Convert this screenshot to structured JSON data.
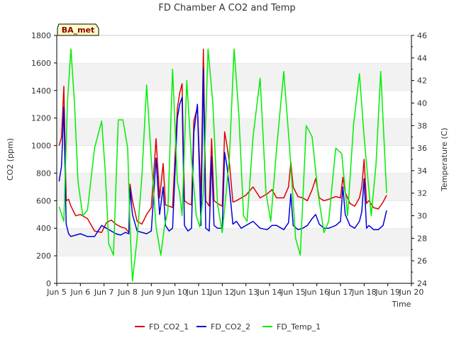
{
  "chart_data": {
    "type": "line",
    "title": "FD Chamber A CO2 and Temp",
    "xlabel": "Time",
    "ylabel_left": "CO2 (ppm)",
    "ylabel_right": "Temperature (C)",
    "site_label": "BA_met",
    "x_tick_labels": [
      "Jun 5",
      "Jun 6",
      "Jun 7",
      "Jun 8",
      "Jun 9",
      "Jun 10",
      "Jun 11",
      "Jun 12",
      "Jun 13",
      "Jun 14",
      "Jun 15",
      "Jun 16",
      "Jun 17",
      "Jun 18",
      "Jun 19",
      "Jun 20"
    ],
    "x_tick_days": [
      5,
      6,
      7,
      8,
      9,
      10,
      11,
      12,
      13,
      14,
      15,
      16,
      17,
      18,
      19,
      20
    ],
    "xlim": [
      5,
      20
    ],
    "ylim_left": [
      0,
      1800
    ],
    "yticks_left": [
      0,
      200,
      400,
      600,
      800,
      1000,
      1200,
      1400,
      1600,
      1800
    ],
    "ylim_right": [
      24,
      46
    ],
    "yticks_right": [
      24,
      26,
      28,
      30,
      32,
      34,
      36,
      38,
      40,
      42,
      44,
      46
    ],
    "grid": "horizontal bands",
    "legend_position": "bottom",
    "series": [
      {
        "name": "FD_CO2_1",
        "axis": "left",
        "color": "#dd0000",
        "x": [
          5.1,
          5.2,
          5.3,
          5.4,
          5.5,
          5.6,
          5.8,
          6.0,
          6.3,
          6.6,
          6.9,
          7.1,
          7.3,
          7.5,
          7.7,
          7.9,
          8.05,
          8.1,
          8.2,
          8.4,
          8.6,
          8.8,
          9.0,
          9.2,
          9.35,
          9.5,
          9.6,
          9.75,
          9.9,
          10.1,
          10.2,
          10.3,
          10.4,
          10.55,
          10.7,
          10.8,
          10.95,
          11.1,
          11.2,
          11.3,
          11.45,
          11.55,
          11.65,
          11.8,
          12.0,
          12.1,
          12.2,
          12.3,
          12.45,
          12.6,
          12.8,
          13.0,
          13.3,
          13.6,
          13.9,
          14.1,
          14.3,
          14.6,
          14.8,
          14.9,
          15.0,
          15.2,
          15.4,
          15.6,
          15.8,
          15.95,
          16.1,
          16.3,
          16.5,
          16.8,
          17.0,
          17.1,
          17.2,
          17.4,
          17.6,
          17.8,
          17.9,
          18.0,
          18.1,
          18.2,
          18.4,
          18.6,
          18.8,
          18.95
        ],
        "values": [
          1000,
          1060,
          1430,
          600,
          610,
          560,
          490,
          500,
          470,
          380,
          370,
          440,
          460,
          430,
          410,
          400,
          370,
          720,
          600,
          450,
          430,
          500,
          550,
          1050,
          620,
          870,
          570,
          560,
          550,
          1270,
          1380,
          1450,
          600,
          580,
          570,
          1180,
          1280,
          620,
          1700,
          600,
          560,
          1050,
          600,
          580,
          560,
          1100,
          1000,
          880,
          590,
          600,
          620,
          640,
          700,
          620,
          650,
          680,
          620,
          620,
          700,
          880,
          700,
          630,
          620,
          600,
          680,
          760,
          620,
          600,
          610,
          630,
          620,
          770,
          660,
          580,
          560,
          620,
          700,
          900,
          580,
          600,
          550,
          540,
          590,
          640
        ]
      },
      {
        "name": "FD_CO2_2",
        "axis": "left",
        "color": "#0000dd",
        "x": [
          5.1,
          5.2,
          5.3,
          5.4,
          5.5,
          5.6,
          5.8,
          6.0,
          6.3,
          6.6,
          6.9,
          7.1,
          7.3,
          7.5,
          7.7,
          7.9,
          8.05,
          8.1,
          8.2,
          8.4,
          8.6,
          8.8,
          9.0,
          9.2,
          9.35,
          9.5,
          9.6,
          9.75,
          9.9,
          10.1,
          10.2,
          10.3,
          10.4,
          10.55,
          10.7,
          10.8,
          10.95,
          11.1,
          11.2,
          11.3,
          11.45,
          11.55,
          11.65,
          11.8,
          12.0,
          12.1,
          12.2,
          12.3,
          12.45,
          12.6,
          12.8,
          13.0,
          13.3,
          13.6,
          13.9,
          14.1,
          14.3,
          14.6,
          14.8,
          14.9,
          15.0,
          15.2,
          15.4,
          15.6,
          15.8,
          15.95,
          16.1,
          16.3,
          16.5,
          16.8,
          17.0,
          17.1,
          17.2,
          17.4,
          17.6,
          17.8,
          17.9,
          18.0,
          18.1,
          18.2,
          18.4,
          18.6,
          18.8,
          18.95
        ],
        "values": [
          740,
          850,
          1280,
          430,
          360,
          340,
          350,
          360,
          340,
          340,
          420,
          400,
          380,
          360,
          350,
          370,
          360,
          690,
          500,
          380,
          370,
          360,
          380,
          910,
          500,
          700,
          420,
          380,
          400,
          1200,
          1300,
          1350,
          420,
          380,
          400,
          1100,
          1300,
          420,
          1560,
          400,
          380,
          920,
          420,
          400,
          400,
          950,
          850,
          700,
          430,
          450,
          400,
          420,
          450,
          400,
          390,
          420,
          420,
          390,
          440,
          650,
          420,
          390,
          400,
          420,
          470,
          500,
          430,
          400,
          400,
          420,
          450,
          700,
          500,
          420,
          400,
          450,
          520,
          760,
          400,
          420,
          390,
          390,
          420,
          530
        ]
      },
      {
        "name": "FD_Temp_1",
        "axis": "right",
        "color": "#00ee00",
        "x": [
          5.1,
          5.3,
          5.45,
          5.6,
          5.75,
          5.9,
          6.1,
          6.3,
          6.6,
          6.9,
          7.05,
          7.2,
          7.4,
          7.6,
          7.8,
          8.0,
          8.1,
          8.2,
          8.4,
          8.6,
          8.8,
          9.0,
          9.2,
          9.4,
          9.55,
          9.7,
          9.9,
          10.1,
          10.2,
          10.3,
          10.5,
          10.7,
          10.9,
          11.05,
          11.2,
          11.4,
          11.6,
          11.8,
          12.0,
          12.3,
          12.5,
          12.7,
          12.9,
          13.05,
          13.3,
          13.6,
          13.85,
          14.05,
          14.3,
          14.6,
          14.85,
          15.1,
          15.3,
          15.55,
          15.8,
          16.05,
          16.3,
          16.5,
          16.8,
          17.05,
          17.3,
          17.55,
          17.8,
          18.0,
          18.3,
          18.5,
          18.7,
          18.95
        ],
        "values": [
          30.8,
          29.5,
          40,
          44.8,
          40,
          33,
          30,
          30.5,
          36,
          38.4,
          34,
          27.5,
          26.5,
          38.5,
          38.5,
          36,
          29,
          24.2,
          28,
          33.5,
          41.6,
          35,
          29,
          26.5,
          29,
          30.5,
          43,
          33,
          32,
          30,
          42,
          35,
          30,
          29,
          32,
          44.8,
          40,
          31,
          28.5,
          35,
          44.8,
          39,
          30,
          29.5,
          37,
          42.2,
          32,
          29.5,
          36,
          42.8,
          36,
          28,
          26.5,
          38,
          37,
          32,
          28.5,
          29.5,
          36,
          35.5,
          30,
          38,
          42.6,
          37,
          30,
          34.5,
          42.8,
          32
        ]
      }
    ]
  }
}
